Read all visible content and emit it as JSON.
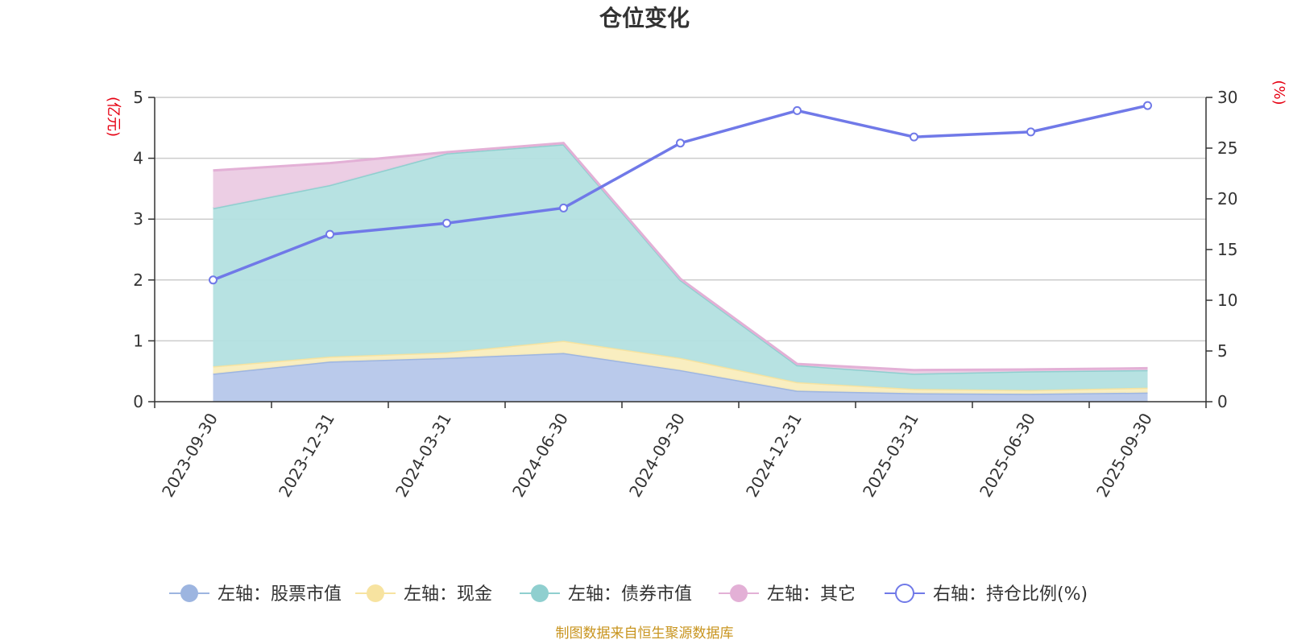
{
  "chart_data": {
    "type": "area",
    "title": "仓位变化",
    "categories": [
      "2023-09-30",
      "2023-12-31",
      "2024-03-31",
      "2024-06-30",
      "2024-09-30",
      "2024-12-31",
      "2025-03-31",
      "2025-06-30",
      "2025-09-30"
    ],
    "y_left": {
      "label": "(亿元)",
      "ylim": [
        0,
        5
      ],
      "ticks": [
        "0",
        "1",
        "2",
        "3",
        "4",
        "5"
      ]
    },
    "y_right": {
      "label": "(%)",
      "ylim": [
        0,
        30
      ],
      "ticks": [
        "0",
        "5",
        "10",
        "15",
        "20",
        "25",
        "30"
      ]
    },
    "stacked_series": [
      {
        "name": "左轴：股票市值",
        "color": "#9db5e0",
        "fill": "#b6c7ea",
        "values": [
          0.46,
          0.66,
          0.72,
          0.8,
          0.52,
          0.18,
          0.14,
          0.13,
          0.15
        ]
      },
      {
        "name": "左轴：现金",
        "color": "#f7e3a0",
        "fill": "#f9edbd",
        "values": [
          0.12,
          0.08,
          0.09,
          0.2,
          0.2,
          0.14,
          0.07,
          0.06,
          0.08
        ]
      },
      {
        "name": "左轴：债券市值",
        "color": "#8fcfcf",
        "fill": "#b3e0e0",
        "values": [
          2.6,
          2.82,
          3.27,
          3.23,
          1.28,
          0.28,
          0.25,
          0.31,
          0.29
        ]
      },
      {
        "name": "左轴：其它",
        "color": "#e3b0d6",
        "fill": "#ebcbe3",
        "values": [
          0.62,
          0.36,
          0.02,
          0.02,
          0.02,
          0.02,
          0.06,
          0.03,
          0.03
        ]
      }
    ],
    "line_series": {
      "name": "右轴：持仓比例(%)",
      "color": "#7079e8",
      "values": [
        12.0,
        16.5,
        17.6,
        19.1,
        25.5,
        28.7,
        26.1,
        26.6,
        29.2
      ]
    },
    "grid": true
  },
  "footer": {
    "source": "制图数据来自恒生聚源数据库"
  }
}
